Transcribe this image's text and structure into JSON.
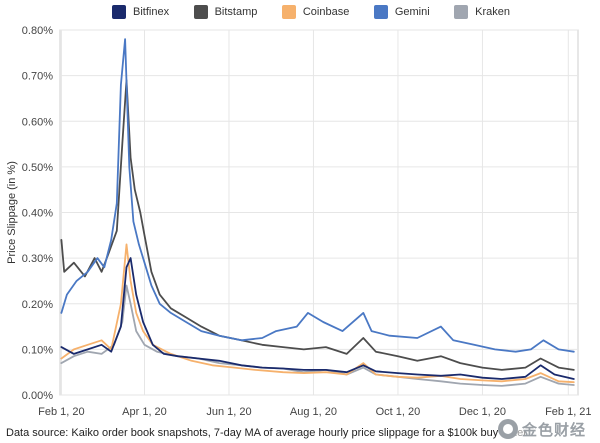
{
  "chart_data": {
    "type": "line",
    "ylabel": "Price Slippage (in %)",
    "xlabel": "",
    "y_ticks": [
      "0.00%",
      "0.10%",
      "0.20%",
      "0.30%",
      "0.40%",
      "0.50%",
      "0.60%",
      "0.70%",
      "0.80%"
    ],
    "ylim": [
      0,
      0.8
    ],
    "x_ticks": [
      {
        "label": "Feb 1, 20",
        "date": "2020-02-01"
      },
      {
        "label": "Apr 1, 20",
        "date": "2020-04-01"
      },
      {
        "label": "Jun 1, 20",
        "date": "2020-06-01"
      },
      {
        "label": "Aug 1, 20",
        "date": "2020-08-01"
      },
      {
        "label": "Oct 1, 20",
        "date": "2020-10-01"
      },
      {
        "label": "Dec 1, 20",
        "date": "2020-12-01"
      },
      {
        "label": "Feb 1, 21",
        "date": "2021-02-01"
      }
    ],
    "xlim": [
      "2020-01-31",
      "2021-02-08"
    ],
    "grid": true,
    "legend_position": "top",
    "series": [
      {
        "name": "Bitfinex",
        "color": "#1a2a6c",
        "points": [
          [
            "2020-02-01",
            0.105
          ],
          [
            "2020-02-10",
            0.09
          ],
          [
            "2020-02-20",
            0.1
          ],
          [
            "2020-03-01",
            0.11
          ],
          [
            "2020-03-08",
            0.095
          ],
          [
            "2020-03-15",
            0.15
          ],
          [
            "2020-03-19",
            0.28
          ],
          [
            "2020-03-22",
            0.3
          ],
          [
            "2020-03-26",
            0.22
          ],
          [
            "2020-03-31",
            0.16
          ],
          [
            "2020-04-07",
            0.11
          ],
          [
            "2020-04-15",
            0.09
          ],
          [
            "2020-04-25",
            0.085
          ],
          [
            "2020-05-10",
            0.08
          ],
          [
            "2020-05-25",
            0.075
          ],
          [
            "2020-06-10",
            0.065
          ],
          [
            "2020-06-25",
            0.06
          ],
          [
            "2020-07-10",
            0.058
          ],
          [
            "2020-07-25",
            0.055
          ],
          [
            "2020-08-10",
            0.055
          ],
          [
            "2020-08-25",
            0.05
          ],
          [
            "2020-09-06",
            0.065
          ],
          [
            "2020-09-15",
            0.052
          ],
          [
            "2020-10-01",
            0.048
          ],
          [
            "2020-10-15",
            0.045
          ],
          [
            "2020-11-01",
            0.042
          ],
          [
            "2020-11-15",
            0.045
          ],
          [
            "2020-12-01",
            0.038
          ],
          [
            "2020-12-15",
            0.035
          ],
          [
            "2021-01-01",
            0.04
          ],
          [
            "2021-01-12",
            0.065
          ],
          [
            "2021-01-22",
            0.045
          ],
          [
            "2021-02-05",
            0.035
          ]
        ]
      },
      {
        "name": "Bitstamp",
        "color": "#4d4d4d",
        "points": [
          [
            "2020-02-01",
            0.34
          ],
          [
            "2020-02-03",
            0.27
          ],
          [
            "2020-02-10",
            0.29
          ],
          [
            "2020-02-18",
            0.26
          ],
          [
            "2020-02-25",
            0.3
          ],
          [
            "2020-03-01",
            0.27
          ],
          [
            "2020-03-06",
            0.31
          ],
          [
            "2020-03-12",
            0.36
          ],
          [
            "2020-03-16",
            0.55
          ],
          [
            "2020-03-19",
            0.69
          ],
          [
            "2020-03-22",
            0.52
          ],
          [
            "2020-03-25",
            0.45
          ],
          [
            "2020-03-29",
            0.4
          ],
          [
            "2020-04-01",
            0.35
          ],
          [
            "2020-04-06",
            0.27
          ],
          [
            "2020-04-12",
            0.22
          ],
          [
            "2020-04-20",
            0.19
          ],
          [
            "2020-05-01",
            0.17
          ],
          [
            "2020-05-12",
            0.15
          ],
          [
            "2020-05-25",
            0.13
          ],
          [
            "2020-06-10",
            0.12
          ],
          [
            "2020-06-25",
            0.11
          ],
          [
            "2020-07-10",
            0.105
          ],
          [
            "2020-07-25",
            0.1
          ],
          [
            "2020-08-10",
            0.105
          ],
          [
            "2020-08-25",
            0.09
          ],
          [
            "2020-09-06",
            0.125
          ],
          [
            "2020-09-15",
            0.095
          ],
          [
            "2020-10-01",
            0.085
          ],
          [
            "2020-10-15",
            0.075
          ],
          [
            "2020-11-01",
            0.085
          ],
          [
            "2020-11-15",
            0.07
          ],
          [
            "2020-12-01",
            0.06
          ],
          [
            "2020-12-15",
            0.055
          ],
          [
            "2021-01-01",
            0.06
          ],
          [
            "2021-01-12",
            0.08
          ],
          [
            "2021-01-25",
            0.06
          ],
          [
            "2021-02-05",
            0.055
          ]
        ]
      },
      {
        "name": "Coinbase",
        "color": "#f6b16c",
        "points": [
          [
            "2020-02-01",
            0.08
          ],
          [
            "2020-02-10",
            0.1
          ],
          [
            "2020-02-20",
            0.11
          ],
          [
            "2020-03-01",
            0.12
          ],
          [
            "2020-03-08",
            0.1
          ],
          [
            "2020-03-15",
            0.2
          ],
          [
            "2020-03-19",
            0.33
          ],
          [
            "2020-03-22",
            0.25
          ],
          [
            "2020-03-26",
            0.18
          ],
          [
            "2020-03-31",
            0.14
          ],
          [
            "2020-04-07",
            0.11
          ],
          [
            "2020-04-20",
            0.09
          ],
          [
            "2020-05-05",
            0.075
          ],
          [
            "2020-05-20",
            0.065
          ],
          [
            "2020-06-05",
            0.06
          ],
          [
            "2020-06-20",
            0.055
          ],
          [
            "2020-07-10",
            0.05
          ],
          [
            "2020-07-25",
            0.048
          ],
          [
            "2020-08-10",
            0.05
          ],
          [
            "2020-08-25",
            0.045
          ],
          [
            "2020-09-06",
            0.07
          ],
          [
            "2020-09-15",
            0.045
          ],
          [
            "2020-10-01",
            0.04
          ],
          [
            "2020-10-15",
            0.038
          ],
          [
            "2020-11-01",
            0.042
          ],
          [
            "2020-11-15",
            0.035
          ],
          [
            "2020-12-01",
            0.032
          ],
          [
            "2020-12-15",
            0.03
          ],
          [
            "2021-01-01",
            0.035
          ],
          [
            "2021-01-12",
            0.048
          ],
          [
            "2021-01-25",
            0.03
          ],
          [
            "2021-02-05",
            0.028
          ]
        ]
      },
      {
        "name": "Gemini",
        "color": "#4a78c4",
        "points": [
          [
            "2020-02-01",
            0.18
          ],
          [
            "2020-02-05",
            0.22
          ],
          [
            "2020-02-12",
            0.25
          ],
          [
            "2020-02-20",
            0.27
          ],
          [
            "2020-02-27",
            0.3
          ],
          [
            "2020-03-03",
            0.28
          ],
          [
            "2020-03-08",
            0.34
          ],
          [
            "2020-03-12",
            0.42
          ],
          [
            "2020-03-15",
            0.68
          ],
          [
            "2020-03-18",
            0.78
          ],
          [
            "2020-03-21",
            0.5
          ],
          [
            "2020-03-24",
            0.38
          ],
          [
            "2020-03-28",
            0.33
          ],
          [
            "2020-04-01",
            0.29
          ],
          [
            "2020-04-06",
            0.24
          ],
          [
            "2020-04-12",
            0.2
          ],
          [
            "2020-04-20",
            0.18
          ],
          [
            "2020-05-01",
            0.16
          ],
          [
            "2020-05-12",
            0.14
          ],
          [
            "2020-05-25",
            0.13
          ],
          [
            "2020-06-10",
            0.12
          ],
          [
            "2020-06-25",
            0.125
          ],
          [
            "2020-07-05",
            0.14
          ],
          [
            "2020-07-20",
            0.15
          ],
          [
            "2020-07-28",
            0.18
          ],
          [
            "2020-08-08",
            0.16
          ],
          [
            "2020-08-22",
            0.14
          ],
          [
            "2020-09-06",
            0.18
          ],
          [
            "2020-09-12",
            0.14
          ],
          [
            "2020-09-25",
            0.13
          ],
          [
            "2020-10-15",
            0.125
          ],
          [
            "2020-11-01",
            0.15
          ],
          [
            "2020-11-10",
            0.12
          ],
          [
            "2020-11-25",
            0.11
          ],
          [
            "2020-12-10",
            0.1
          ],
          [
            "2020-12-25",
            0.095
          ],
          [
            "2021-01-05",
            0.1
          ],
          [
            "2021-01-14",
            0.12
          ],
          [
            "2021-01-25",
            0.1
          ],
          [
            "2021-02-05",
            0.095
          ]
        ]
      },
      {
        "name": "Kraken",
        "color": "#a0a6b0",
        "points": [
          [
            "2020-02-01",
            0.07
          ],
          [
            "2020-02-10",
            0.085
          ],
          [
            "2020-02-20",
            0.095
          ],
          [
            "2020-03-01",
            0.09
          ],
          [
            "2020-03-10",
            0.11
          ],
          [
            "2020-03-16",
            0.16
          ],
          [
            "2020-03-19",
            0.24
          ],
          [
            "2020-03-22",
            0.2
          ],
          [
            "2020-03-26",
            0.14
          ],
          [
            "2020-04-01",
            0.11
          ],
          [
            "2020-04-10",
            0.095
          ],
          [
            "2020-04-25",
            0.085
          ],
          [
            "2020-05-10",
            0.08
          ],
          [
            "2020-05-25",
            0.07
          ],
          [
            "2020-06-10",
            0.065
          ],
          [
            "2020-06-25",
            0.06
          ],
          [
            "2020-07-10",
            0.058
          ],
          [
            "2020-07-25",
            0.05
          ],
          [
            "2020-08-10",
            0.055
          ],
          [
            "2020-08-25",
            0.045
          ],
          [
            "2020-09-06",
            0.06
          ],
          [
            "2020-09-15",
            0.045
          ],
          [
            "2020-10-01",
            0.04
          ],
          [
            "2020-10-15",
            0.035
          ],
          [
            "2020-11-01",
            0.03
          ],
          [
            "2020-11-15",
            0.025
          ],
          [
            "2020-12-01",
            0.022
          ],
          [
            "2020-12-15",
            0.02
          ],
          [
            "2021-01-01",
            0.025
          ],
          [
            "2021-01-12",
            0.04
          ],
          [
            "2021-01-25",
            0.025
          ],
          [
            "2021-02-05",
            0.022
          ]
        ]
      }
    ]
  },
  "footer": {
    "source_text": "Data source: Kaiko order book snapshots, 7-day MA of average hourly price slippage for a $100k buy order"
  },
  "watermark": {
    "text": "金色财经"
  }
}
